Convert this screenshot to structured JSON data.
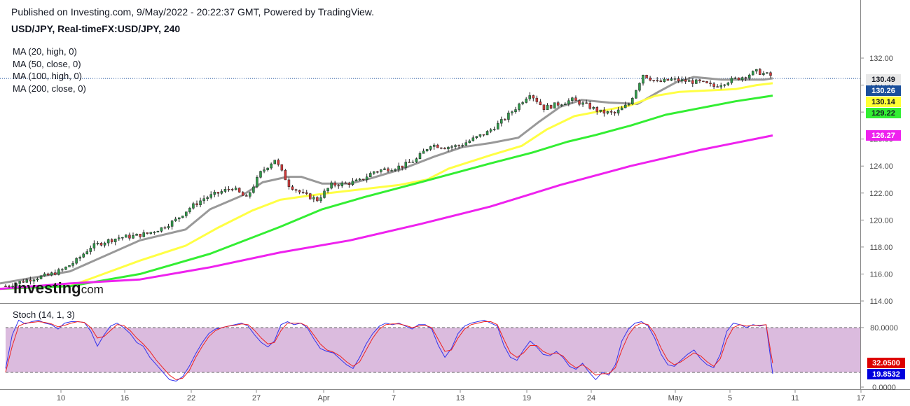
{
  "header": {
    "published": "Published on Investing.com, 9/May/2022 - 20:22:37 GMT, Powered by TradingView.",
    "symbol": "USD/JPY, Real-timeFX:USD/JPY, 240"
  },
  "legend": [
    "MA (20, high, 0)",
    "MA (50, close, 0)",
    "MA (100, high, 0)",
    "MA (200, close, 0)"
  ],
  "stoch_legend": "Stoch (14, 1, 3)",
  "logo": {
    "main": "Investing",
    "suffix": ".com"
  },
  "chart_data": {
    "type": "line",
    "xlabel": "",
    "ylabel": "",
    "grid": false,
    "price_axis": {
      "ylim": [
        114.0,
        132.6
      ],
      "ticks": [
        "114.00",
        "116.00",
        "118.00",
        "120.00",
        "122.00",
        "124.00",
        "126.00",
        "128.00",
        "130.00",
        "132.00"
      ],
      "last_price": 130.49
    },
    "x_axis": {
      "ticks": [
        "10",
        "16",
        "22",
        "27",
        "Apr",
        "7",
        "13",
        "19",
        "24",
        "May",
        "5",
        "11",
        "17"
      ]
    },
    "price_tags": [
      {
        "label": "130.49",
        "value": 130.49,
        "bg": "#e8e8e8",
        "fg": "#131722"
      },
      {
        "label": "130.26",
        "value": 130.26,
        "bg": "#1a4f9c",
        "fg": "#ffffff"
      },
      {
        "label": "130.14",
        "value": 130.14,
        "bg": "#ffff33",
        "fg": "#131722"
      },
      {
        "label": "129.22",
        "value": 129.22,
        "bg": "#33ee33",
        "fg": "#131722"
      },
      {
        "label": "126.27",
        "value": 126.27,
        "bg": "#ee22ee",
        "fg": "#ffffff"
      }
    ],
    "price_series": [
      115.1,
      115.4,
      115.7,
      115.9,
      116.3,
      117.0,
      118.0,
      118.4,
      118.7,
      118.8,
      119.0,
      119.4,
      120.0,
      120.9,
      121.6,
      122.0,
      122.4,
      121.6,
      123.5,
      124.5,
      122.6,
      121.9,
      121.5,
      122.6,
      122.7,
      122.9,
      123.6,
      123.8,
      124.0,
      124.5,
      125.6,
      125.4,
      125.5,
      126.0,
      126.5,
      127.3,
      128.3,
      129.4,
      128.3,
      128.6,
      128.9,
      128.5,
      128.0,
      127.9,
      128.6,
      130.8,
      130.2,
      130.4,
      130.3,
      130.2,
      129.9,
      130.3,
      130.6,
      131.0,
      130.7
    ],
    "series": [
      {
        "name": "MA (20, high, 0)",
        "color": "#999999",
        "points": [
          [
            0,
            115.3
          ],
          [
            100,
            116.2
          ],
          [
            200,
            118.5
          ],
          [
            265,
            119.3
          ],
          [
            300,
            120.8
          ],
          [
            345,
            121.8
          ],
          [
            375,
            122.8
          ],
          [
            410,
            123.2
          ],
          [
            430,
            123.2
          ],
          [
            460,
            122.7
          ],
          [
            500,
            122.7
          ],
          [
            530,
            123.1
          ],
          [
            575,
            123.8
          ],
          [
            620,
            124.7
          ],
          [
            660,
            125.4
          ],
          [
            700,
            125.7
          ],
          [
            740,
            126.1
          ],
          [
            770,
            127.3
          ],
          [
            800,
            128.4
          ],
          [
            830,
            128.9
          ],
          [
            870,
            128.7
          ],
          [
            910,
            128.6
          ],
          [
            940,
            129.5
          ],
          [
            965,
            130.2
          ],
          [
            990,
            130.6
          ],
          [
            1030,
            130.4
          ],
          [
            1060,
            130.4
          ],
          [
            1090,
            130.4
          ],
          [
            1103,
            130.5
          ]
        ]
      },
      {
        "name": "MA (50, close, 0)",
        "color": "#ffff44",
        "points": [
          [
            0,
            114.9
          ],
          [
            100,
            115.1
          ],
          [
            200,
            117.0
          ],
          [
            265,
            118.1
          ],
          [
            310,
            119.4
          ],
          [
            360,
            120.7
          ],
          [
            400,
            121.5
          ],
          [
            440,
            121.8
          ],
          [
            470,
            122.0
          ],
          [
            520,
            122.3
          ],
          [
            570,
            122.6
          ],
          [
            610,
            123.0
          ],
          [
            640,
            123.8
          ],
          [
            700,
            124.8
          ],
          [
            745,
            125.5
          ],
          [
            780,
            126.7
          ],
          [
            820,
            127.7
          ],
          [
            870,
            128.2
          ],
          [
            900,
            128.5
          ],
          [
            935,
            129.2
          ],
          [
            970,
            129.5
          ],
          [
            1010,
            129.6
          ],
          [
            1050,
            129.7
          ],
          [
            1080,
            130.0
          ],
          [
            1103,
            130.14
          ]
        ]
      },
      {
        "name": "MA (100, high, 0)",
        "color": "#33ee33",
        "points": [
          [
            0,
            114.9
          ],
          [
            100,
            115.1
          ],
          [
            200,
            116.0
          ],
          [
            300,
            117.5
          ],
          [
            400,
            119.5
          ],
          [
            460,
            120.8
          ],
          [
            520,
            121.7
          ],
          [
            600,
            122.8
          ],
          [
            650,
            123.5
          ],
          [
            700,
            124.2
          ],
          [
            760,
            125.0
          ],
          [
            810,
            125.8
          ],
          [
            850,
            126.3
          ],
          [
            900,
            127.0
          ],
          [
            950,
            127.8
          ],
          [
            1000,
            128.3
          ],
          [
            1050,
            128.8
          ],
          [
            1103,
            129.22
          ]
        ]
      },
      {
        "name": "MA (200, close, 0)",
        "color": "#ee22ee",
        "points": [
          [
            0,
            114.9
          ],
          [
            100,
            115.3
          ],
          [
            200,
            115.6
          ],
          [
            300,
            116.5
          ],
          [
            400,
            117.6
          ],
          [
            500,
            118.5
          ],
          [
            600,
            119.7
          ],
          [
            700,
            121.0
          ],
          [
            800,
            122.6
          ],
          [
            900,
            124.0
          ],
          [
            1000,
            125.2
          ],
          [
            1103,
            126.27
          ]
        ]
      }
    ],
    "stoch": {
      "title": "Stoch (14, 1, 3)",
      "ylim": [
        0,
        100
      ],
      "upper_band": 80,
      "lower_band": 20,
      "ticks": [
        "80.0000",
        "0.0000"
      ],
      "last": [
        {
          "label": "32.0500",
          "value": 32.05,
          "bg": "#dd0000",
          "fg": "#ffffff"
        },
        {
          "label": "19.8532",
          "value": 19.8532,
          "bg": "#0000dd",
          "fg": "#ffffff"
        }
      ],
      "k": [
        25,
        70,
        90,
        85,
        88,
        90,
        86,
        84,
        78,
        86,
        88,
        88,
        87,
        75,
        55,
        70,
        82,
        86,
        80,
        72,
        60,
        55,
        40,
        30,
        20,
        10,
        8,
        14,
        28,
        45,
        60,
        72,
        78,
        80,
        82,
        84,
        86,
        82,
        70,
        60,
        54,
        62,
        84,
        88,
        84,
        86,
        80,
        65,
        52,
        48,
        46,
        38,
        30,
        25,
        40,
        58,
        72,
        82,
        86,
        84,
        86,
        82,
        78,
        84,
        84,
        78,
        56,
        40,
        52,
        72,
        82,
        86,
        88,
        90,
        86,
        82,
        56,
        40,
        36,
        50,
        62,
        54,
        44,
        42,
        48,
        40,
        28,
        24,
        32,
        20,
        10,
        20,
        16,
        30,
        62,
        78,
        86,
        88,
        82,
        66,
        44,
        30,
        28,
        36,
        44,
        50,
        38,
        30,
        26,
        44,
        75,
        86,
        84,
        80,
        84,
        82,
        84,
        18
      ],
      "d": [
        20,
        55,
        82,
        86,
        87,
        88,
        87,
        85,
        81,
        83,
        86,
        88,
        87,
        80,
        66,
        68,
        76,
        84,
        83,
        76,
        66,
        58,
        48,
        36,
        26,
        16,
        10,
        12,
        22,
        40,
        55,
        68,
        76,
        80,
        82,
        83,
        85,
        84,
        76,
        66,
        58,
        60,
        76,
        86,
        86,
        86,
        82,
        70,
        58,
        50,
        47,
        42,
        34,
        28,
        34,
        50,
        66,
        78,
        84,
        85,
        85,
        83,
        80,
        82,
        83,
        80,
        64,
        48,
        50,
        66,
        78,
        84,
        86,
        88,
        88,
        84,
        64,
        46,
        40,
        46,
        56,
        56,
        48,
        44,
        46,
        42,
        32,
        26,
        30,
        24,
        16,
        18,
        18,
        26,
        50,
        70,
        82,
        86,
        84,
        72,
        52,
        36,
        30,
        34,
        40,
        46,
        42,
        34,
        28,
        38,
        64,
        80,
        84,
        82,
        83,
        83,
        84,
        32
      ]
    }
  }
}
